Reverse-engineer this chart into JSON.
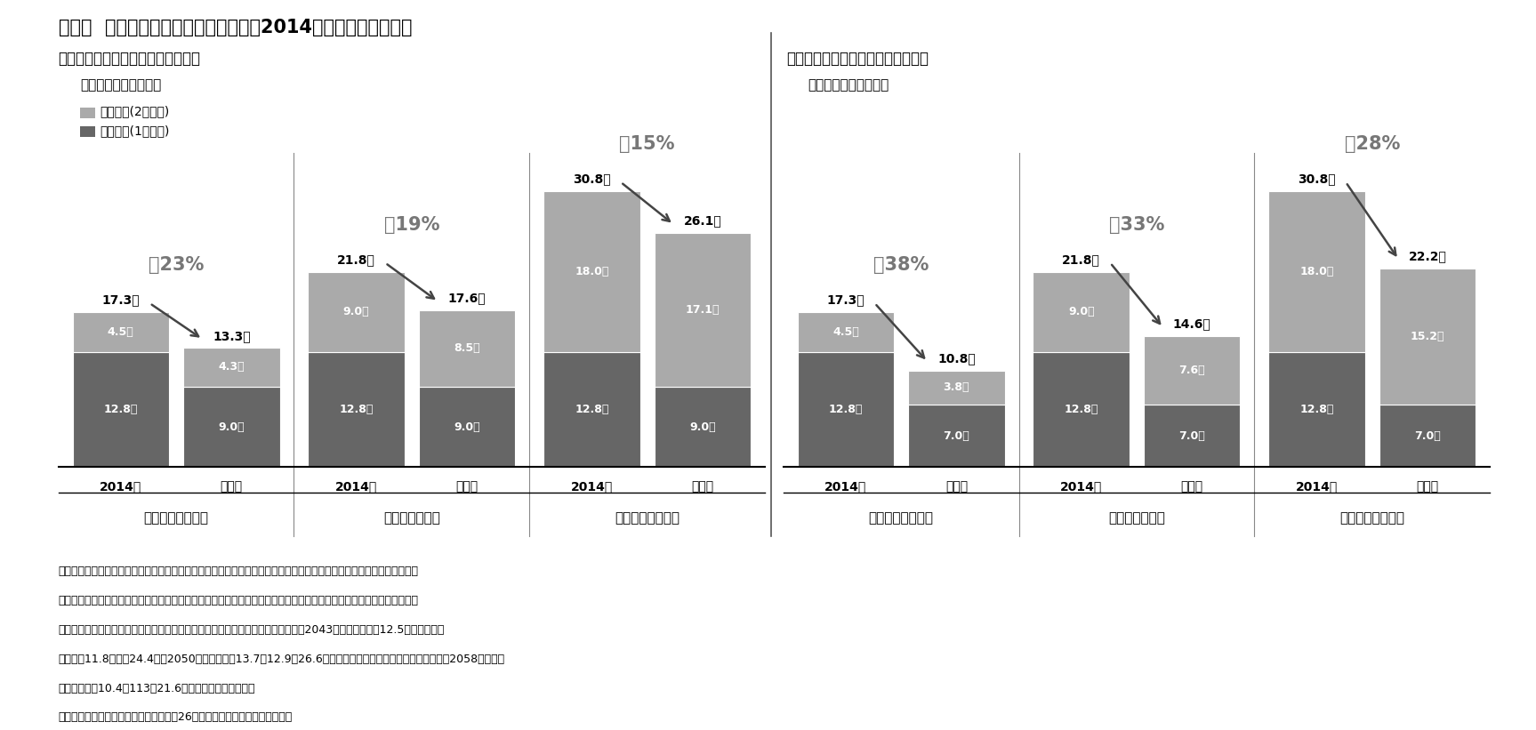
{
  "title": "図表２  給与水準別の給付削減見通し（2014年財政検証ベース）",
  "left_header": "【経済再生かつ出生維持のケース】",
  "left_subheader": "（経済Ｅ・人口中位）",
  "right_header": "【経済低迷かつ出生維持のケース】",
  "right_subheader": "（経済Ｇ・人口中位）",
  "legend_kousei": "厚生年金(2階部分)",
  "legend_kiso": "基礎年金(1階部分)",
  "color_kousei": "#aaaaaa",
  "color_kiso": "#666666",
  "color_pct": "#888888",
  "groups_left": [
    {
      "group_label": "平均の半分の世帯",
      "bar1_kiso": 12.8,
      "bar1_kousei": 4.5,
      "bar1_total": 17.3,
      "bar2_kiso": 9.0,
      "bar2_kousei": 4.3,
      "bar2_total": 13.3,
      "pct": "－23%"
    },
    {
      "group_label": "平均賃金の世帯",
      "bar1_kiso": 12.8,
      "bar1_kousei": 9.0,
      "bar1_total": 21.8,
      "bar2_kiso": 9.0,
      "bar2_kousei": 8.5,
      "bar2_total": 17.6,
      "pct": "－19%"
    },
    {
      "group_label": "平均の２倍の世帯",
      "bar1_kiso": 12.8,
      "bar1_kousei": 18.0,
      "bar1_total": 30.8,
      "bar2_kiso": 9.0,
      "bar2_kousei": 17.1,
      "bar2_total": 26.1,
      "pct": "－15%"
    }
  ],
  "groups_right": [
    {
      "group_label": "平均の半分の世帯",
      "bar1_kiso": 12.8,
      "bar1_kousei": 4.5,
      "bar1_total": 17.3,
      "bar2_kiso": 7.0,
      "bar2_kousei": 3.8,
      "bar2_total": 10.8,
      "pct": "－38%"
    },
    {
      "group_label": "平均賃金の世帯",
      "bar1_kiso": 12.8,
      "bar1_kousei": 9.0,
      "bar1_total": 21.8,
      "bar2_kiso": 7.0,
      "bar2_kousei": 7.6,
      "bar2_total": 14.6,
      "pct": "－33%"
    },
    {
      "group_label": "平均の２倍の世帯",
      "bar1_kiso": 12.8,
      "bar1_kousei": 18.0,
      "bar1_total": 30.8,
      "bar2_kiso": 7.0,
      "bar2_kousei": 15.2,
      "bar2_total": 22.2,
      "pct": "－28%"
    }
  ],
  "notes": [
    "（注１）上記の年金月額は夫婦の場合で、年金財政が健全化するまで給付削減を続けた場合。将来の年金額は、現在の生",
    "　　　　活感覚に合うよう賃金上昇率で現在の価値に換算したものであり、所得代替率を金額化したものに相当する。な",
    "　　　　お、物価上昇率で換算した場合は、経済Ｅ・人口中位の平均賃金世帯で、2043年度に基礎年金12.5万＋厚生年金",
    "　　　　11.8万＝計24.4万、2050年度に同じく13.7＋12.9＝26.6万、経済Ｇ・人口中位の平均賃金世帯で、2058年度に同",
    "　　　　じく10.4＋113＝21.6万、と公表されている。",
    "（資料）厚生労働省年金局数理課「平成26年財政検証結果」より筆者作成。"
  ]
}
